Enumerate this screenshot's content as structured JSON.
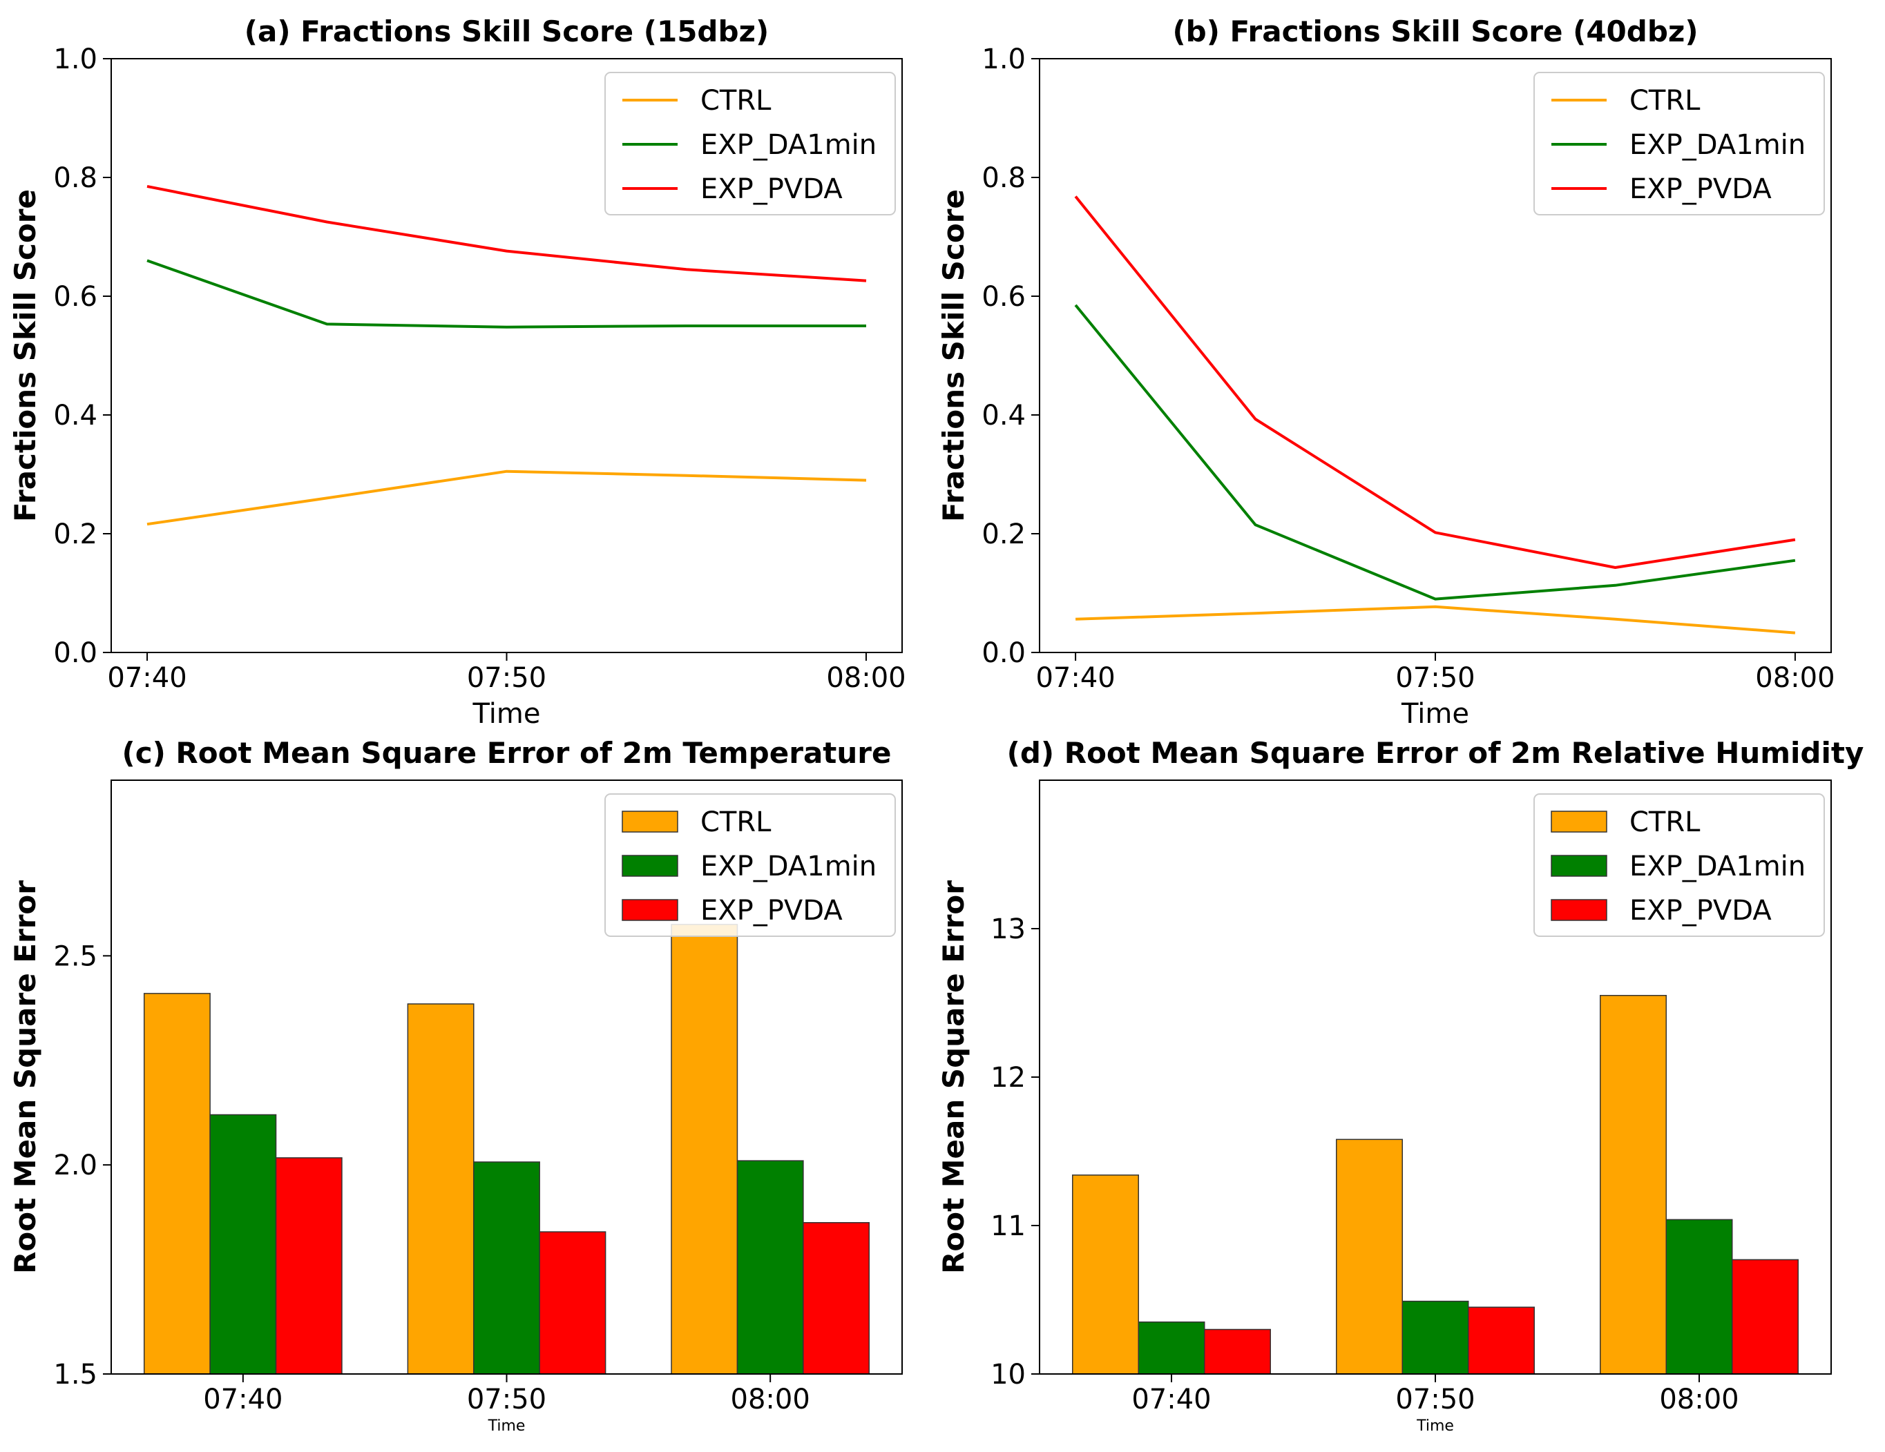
{
  "chart_data": [
    {
      "id": "a",
      "type": "line",
      "title": "(a) Fractions Skill Score (15dbz)",
      "xlabel": "Time",
      "ylabel": "Fractions Skill Score",
      "x": [
        0,
        5,
        10,
        15,
        20
      ],
      "xticks": [
        {
          "v": 0,
          "label": "07:40"
        },
        {
          "v": 10,
          "label": "07:50"
        },
        {
          "v": 20,
          "label": "08:00"
        }
      ],
      "xlim": [
        -1,
        21
      ],
      "ylim": [
        0,
        1.0
      ],
      "yticks": [
        {
          "v": 0,
          "label": "0.0"
        },
        {
          "v": 0.2,
          "label": "0.2"
        },
        {
          "v": 0.4,
          "label": "0.4"
        },
        {
          "v": 0.6,
          "label": "0.6"
        },
        {
          "v": 0.8,
          "label": "0.8"
        },
        {
          "v": 1.0,
          "label": "1.0"
        }
      ],
      "legend_position": "top-right",
      "series": [
        {
          "name": "CTRL",
          "color": "#FFA500",
          "values": [
            0.216,
            0.26,
            0.305,
            0.298,
            0.29
          ]
        },
        {
          "name": "EXP_DA1min",
          "color": "#008000",
          "values": [
            0.66,
            0.553,
            0.548,
            0.55,
            0.55
          ]
        },
        {
          "name": "EXP_PVDA",
          "color": "#FF0000",
          "values": [
            0.785,
            0.725,
            0.676,
            0.645,
            0.626
          ]
        }
      ]
    },
    {
      "id": "b",
      "type": "line",
      "title": "(b) Fractions Skill Score (40dbz)",
      "xlabel": "Time",
      "ylabel": "Fractions Skill Score",
      "x": [
        0,
        5,
        10,
        15,
        20
      ],
      "xticks": [
        {
          "v": 0,
          "label": "07:40"
        },
        {
          "v": 10,
          "label": "07:50"
        },
        {
          "v": 20,
          "label": "08:00"
        }
      ],
      "xlim": [
        -1,
        21
      ],
      "ylim": [
        0,
        1.0
      ],
      "yticks": [
        {
          "v": 0,
          "label": "0.0"
        },
        {
          "v": 0.2,
          "label": "0.2"
        },
        {
          "v": 0.4,
          "label": "0.4"
        },
        {
          "v": 0.6,
          "label": "0.6"
        },
        {
          "v": 0.8,
          "label": "0.8"
        },
        {
          "v": 1.0,
          "label": "1.0"
        }
      ],
      "legend_position": "top-right",
      "series": [
        {
          "name": "CTRL",
          "color": "#FFA500",
          "values": [
            0.056,
            0.066,
            0.077,
            0.056,
            0.033
          ]
        },
        {
          "name": "EXP_DA1min",
          "color": "#008000",
          "values": [
            0.585,
            0.215,
            0.09,
            0.113,
            0.155
          ]
        },
        {
          "name": "EXP_PVDA",
          "color": "#FF0000",
          "values": [
            0.768,
            0.393,
            0.202,
            0.143,
            0.19
          ]
        }
      ]
    },
    {
      "id": "c",
      "type": "bar",
      "title": "(c) Root Mean Square Error of 2m Temperature",
      "xlabel": "Time",
      "ylabel": "Root Mean Square Error",
      "categories": [
        "07:40",
        "07:50",
        "08:00"
      ],
      "ylim": [
        1.5,
        2.92
      ],
      "yticks": [
        {
          "v": 1.5,
          "label": "1.5"
        },
        {
          "v": 2.0,
          "label": "2.0"
        },
        {
          "v": 2.5,
          "label": "2.5"
        }
      ],
      "legend_position": "top-right",
      "series": [
        {
          "name": "CTRL",
          "color": "#FFA500",
          "values": [
            2.41,
            2.385,
            2.575
          ]
        },
        {
          "name": "EXP_DA1min",
          "color": "#008000",
          "values": [
            2.12,
            2.007,
            2.01
          ]
        },
        {
          "name": "EXP_PVDA",
          "color": "#FF0000",
          "values": [
            2.017,
            1.84,
            1.862
          ]
        }
      ]
    },
    {
      "id": "d",
      "type": "bar",
      "title": "(d) Root Mean Square Error of 2m Relative Humidity",
      "xlabel": "Time",
      "ylabel": "Root Mean Square Error",
      "categories": [
        "07:40",
        "07:50",
        "08:00"
      ],
      "ylim": [
        10,
        14.0
      ],
      "yticks": [
        {
          "v": 10,
          "label": "10"
        },
        {
          "v": 11,
          "label": "11"
        },
        {
          "v": 12,
          "label": "12"
        },
        {
          "v": 13,
          "label": "13"
        }
      ],
      "legend_position": "top-right",
      "series": [
        {
          "name": "CTRL",
          "color": "#FFA500",
          "values": [
            11.34,
            11.58,
            12.55
          ]
        },
        {
          "name": "EXP_DA1min",
          "color": "#008000",
          "values": [
            10.35,
            10.49,
            11.04
          ]
        },
        {
          "name": "EXP_PVDA",
          "color": "#FF0000",
          "values": [
            10.3,
            10.45,
            10.77
          ]
        }
      ]
    }
  ]
}
